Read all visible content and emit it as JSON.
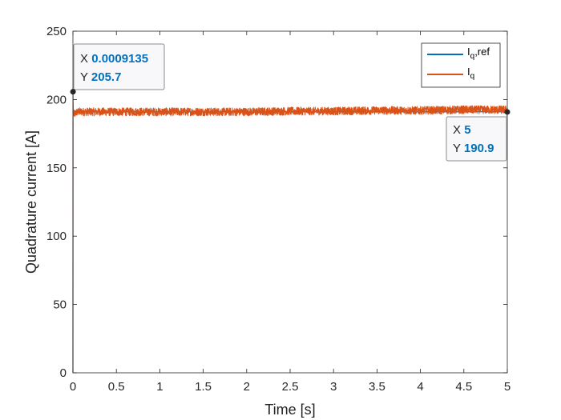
{
  "chart_data": {
    "type": "line",
    "xlabel": "Time [s]",
    "ylabel": "Quadrature current [A]",
    "xlim": [
      0,
      5
    ],
    "ylim": [
      0,
      250
    ],
    "xticks": [
      0,
      0.5,
      1,
      1.5,
      2,
      2.5,
      3,
      3.5,
      4,
      4.5,
      5
    ],
    "xtick_labels": [
      "0",
      "0.5",
      "1",
      "1.5",
      "2",
      "2.5",
      "3",
      "3.5",
      "4",
      "4.5",
      "5"
    ],
    "yticks": [
      0,
      50,
      100,
      150,
      200,
      250
    ],
    "ytick_labels": [
      "0",
      "50",
      "100",
      "150",
      "200",
      "250"
    ],
    "grid": false,
    "legend_location": "top-right",
    "legend": [
      {
        "main": "I",
        "sub": "q",
        "suffix": ",ref",
        "color": "#0072bd"
      },
      {
        "main": "I",
        "sub": "q",
        "suffix": "",
        "color": "#d95319"
      }
    ],
    "series": [
      {
        "name": "Iq,ref",
        "color": "#0072bd",
        "x": [
          0,
          0.0009135,
          5
        ],
        "y": [
          0,
          191,
          191
        ]
      },
      {
        "name": "Iq",
        "color": "#d95319",
        "x": [
          0,
          0.0009135,
          0.01,
          0.05,
          0.5,
          1,
          1.5,
          2,
          2.5,
          3,
          3.5,
          4,
          4.5,
          5
        ],
        "y": [
          0,
          205.7,
          189,
          191,
          191,
          191,
          191,
          191,
          191.5,
          191.5,
          192,
          192,
          192.5,
          192.5
        ],
        "noise_band": 3
      }
    ],
    "datatips": [
      {
        "x_label": "X",
        "x_value": "0.0009135",
        "y_label": "Y",
        "y_value": "205.7",
        "x": 0.0009135,
        "y": 205.7
      },
      {
        "x_label": "X",
        "x_value": "5",
        "y_label": "Y",
        "y_value": "190.9",
        "x": 5,
        "y": 190.9
      }
    ]
  },
  "colors": {
    "axis": "#262626",
    "background": "#ffffff",
    "datatip_bg": "#f8f8fb",
    "datatip_border": "#8c8c8c",
    "datatip_value": "#0072bd"
  }
}
